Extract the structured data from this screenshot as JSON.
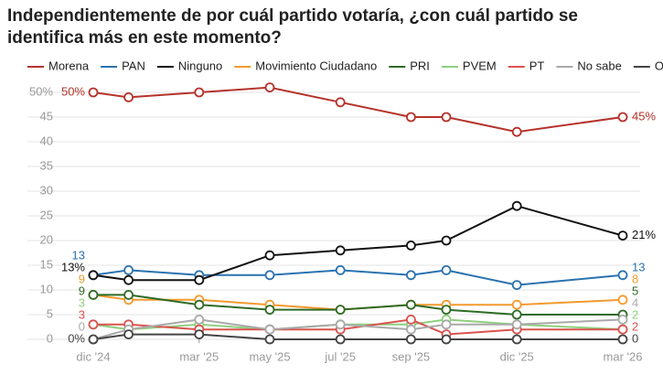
{
  "chart_data": {
    "type": "line",
    "title": "Independientemente de por cuál partido votaría, ¿con cuál partido se identifica más en este momento?",
    "x": [
      0,
      1,
      3,
      5,
      7,
      9,
      10,
      12,
      15
    ],
    "xlim": [
      0,
      15
    ],
    "xticks": [
      {
        "value": 0,
        "label": "dic '24"
      },
      {
        "value": 3,
        "label": "mar '25"
      },
      {
        "value": 5,
        "label": "may '25"
      },
      {
        "value": 7,
        "label": "jul '25"
      },
      {
        "value": 9,
        "label": "sep '25"
      },
      {
        "value": 12,
        "label": "dic '25"
      },
      {
        "value": 15,
        "label": "mar '26"
      }
    ],
    "ylim": [
      0,
      50
    ],
    "yticks": [
      0,
      5,
      10,
      15,
      20,
      25,
      30,
      35,
      40,
      45,
      {
        "value": 50,
        "label": "50%"
      }
    ],
    "grid": true,
    "series": [
      {
        "name": "Morena",
        "color": "#b5332b",
        "values": [
          50,
          49,
          50,
          51,
          48,
          45,
          45,
          42,
          45
        ],
        "value_labels": [
          "50%",
          null,
          null,
          null,
          null,
          null,
          null,
          null,
          "45%"
        ]
      },
      {
        "name": "PAN",
        "color": "#2a72b0",
        "values": [
          13,
          14,
          13,
          13,
          14,
          13,
          14,
          11,
          13
        ],
        "value_labels": [
          "13",
          null,
          null,
          null,
          null,
          null,
          null,
          null,
          "13"
        ]
      },
      {
        "name": "Ninguno",
        "color": "#111111",
        "values": [
          13,
          12,
          12,
          17,
          18,
          19,
          20,
          27,
          21
        ],
        "value_labels": [
          "13%",
          null,
          null,
          null,
          null,
          null,
          null,
          null,
          "21%"
        ]
      },
      {
        "name": "Movimiento Ciudadano",
        "color": "#f29a2e",
        "values": [
          9,
          8,
          8,
          7,
          6,
          7,
          7,
          7,
          8
        ],
        "value_labels": [
          "9",
          null,
          null,
          null,
          null,
          null,
          null,
          null,
          "8"
        ]
      },
      {
        "name": "PRI",
        "color": "#2e6b25",
        "values": [
          9,
          9,
          7,
          6,
          6,
          7,
          6,
          5,
          5
        ],
        "value_labels": [
          "9",
          null,
          null,
          null,
          null,
          null,
          null,
          null,
          "5"
        ]
      },
      {
        "name": "PVEM",
        "color": "#8fcf7f",
        "values": [
          3,
          2,
          3,
          2,
          3,
          3,
          4,
          3,
          2
        ],
        "value_labels": [
          "3",
          null,
          null,
          null,
          null,
          null,
          null,
          null,
          "2"
        ]
      },
      {
        "name": "PT",
        "color": "#d9534f",
        "values": [
          3,
          3,
          2,
          2,
          2,
          4,
          1,
          2,
          2
        ],
        "value_labels": [
          "3",
          null,
          null,
          null,
          null,
          null,
          null,
          null,
          "2"
        ]
      },
      {
        "name": "No sabe",
        "color": "#a9a9a9",
        "values": [
          0,
          2,
          4,
          2,
          3,
          2,
          3,
          3,
          4
        ],
        "value_labels": [
          "0",
          null,
          null,
          null,
          null,
          null,
          null,
          null,
          "4"
        ]
      },
      {
        "name": "Otro",
        "color": "#444444",
        "values": [
          0,
          1,
          1,
          0,
          0,
          0,
          0,
          0,
          0
        ],
        "value_labels": [
          "0%",
          null,
          null,
          null,
          null,
          null,
          null,
          null,
          "0"
        ]
      }
    ]
  }
}
